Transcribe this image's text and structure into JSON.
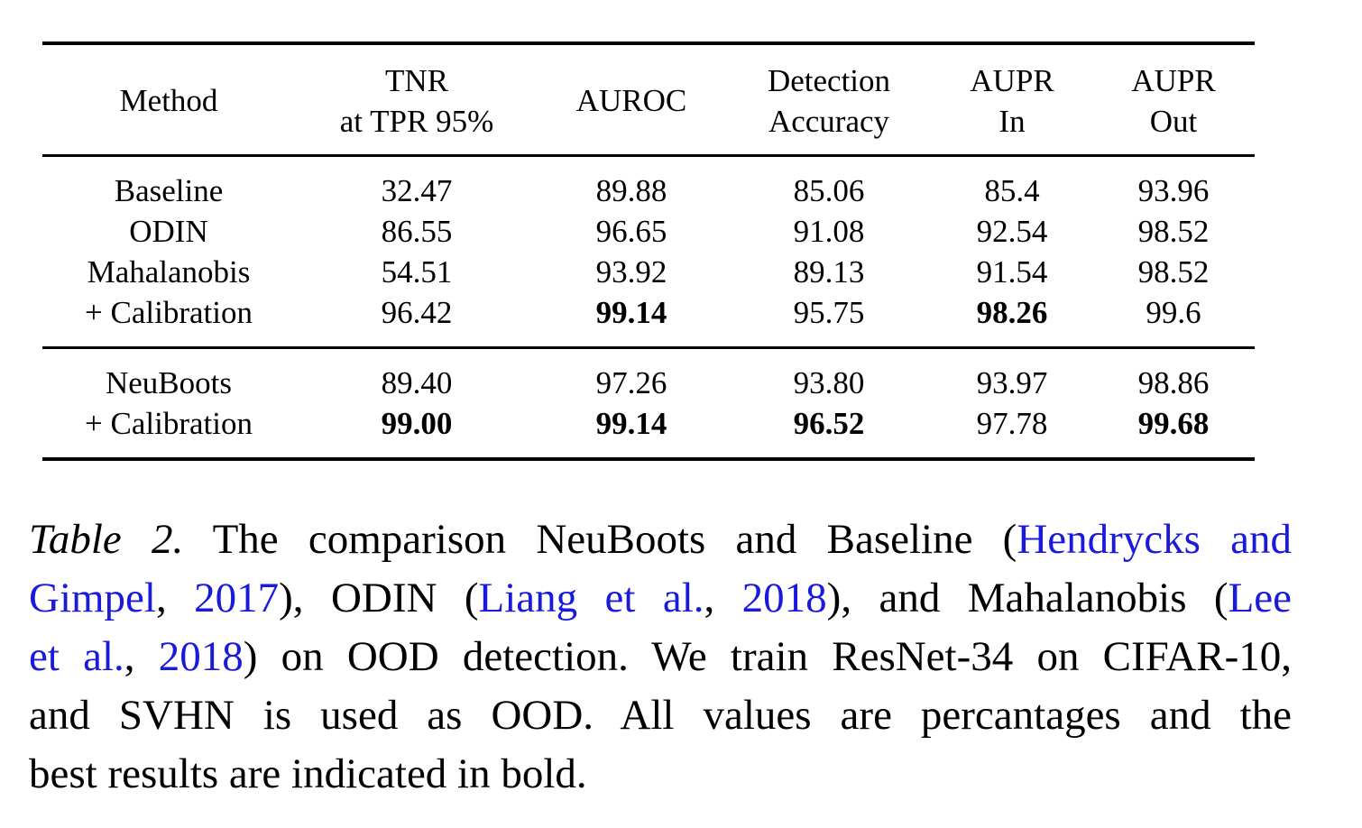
{
  "table": {
    "headers": [
      [
        "Method"
      ],
      [
        "TNR",
        "at TPR 95%"
      ],
      [
        "AUROC"
      ],
      [
        "Detection",
        "Accuracy"
      ],
      [
        "AUPR",
        "In"
      ],
      [
        "AUPR",
        "Out"
      ]
    ],
    "group1": [
      {
        "method": "Baseline",
        "values": [
          "32.47",
          "89.88",
          "85.06",
          "85.4",
          "93.96"
        ],
        "bold": [
          false,
          false,
          false,
          false,
          false
        ]
      },
      {
        "method": "ODIN",
        "values": [
          "86.55",
          "96.65",
          "91.08",
          "92.54",
          "98.52"
        ],
        "bold": [
          false,
          false,
          false,
          false,
          false
        ]
      },
      {
        "method": "Mahalanobis",
        "values": [
          "54.51",
          "93.92",
          "89.13",
          "91.54",
          "98.52"
        ],
        "bold": [
          false,
          false,
          false,
          false,
          false
        ]
      },
      {
        "method": "+ Calibration",
        "values": [
          "96.42",
          "99.14",
          "95.75",
          "98.26",
          "99.6"
        ],
        "bold": [
          false,
          true,
          false,
          true,
          false
        ]
      }
    ],
    "group2": [
      {
        "method": "NeuBoots",
        "values": [
          "89.40",
          "97.26",
          "93.80",
          "93.97",
          "98.86"
        ],
        "bold": [
          false,
          false,
          false,
          false,
          false
        ]
      },
      {
        "method": "+ Calibration",
        "values": [
          "99.00",
          "99.14",
          "96.52",
          "97.78",
          "99.68"
        ],
        "bold": [
          true,
          true,
          true,
          false,
          true
        ]
      }
    ]
  },
  "caption": {
    "label": "Table 2.",
    "t1": " The comparison NeuBoots and Baseline (",
    "c1": "Hendrycks and",
    "c1b": "Gimpel",
    "t2": ", ",
    "c2": "2017",
    "t3": "), ODIN (",
    "c3": "Liang et al.",
    "t4": ", ",
    "c4": "2018",
    "t5": "), and Mahalanobis (",
    "c5": "Lee",
    "c5b": "et al.",
    "t6": ", ",
    "c6": "2018",
    "t7": ") on OOD detection. We train ResNet-34 on CIFAR-10,",
    "t8": "and SVHN is used as OOD. All values are percantages and the",
    "t9": "best results are indicated in bold."
  }
}
